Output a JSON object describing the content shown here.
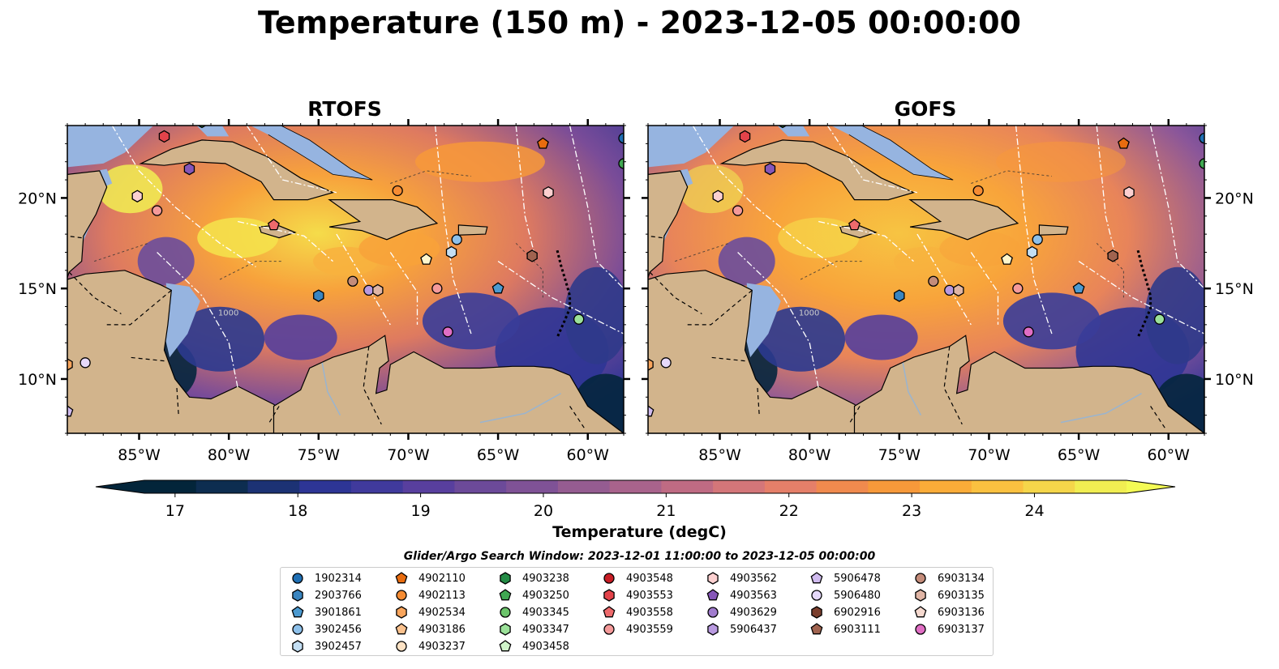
{
  "title": "Temperature (150 m) - 2023-12-05 00:00:00",
  "panels": [
    {
      "title": "RTOFS",
      "variant": "rtofs"
    },
    {
      "title": "GOFS",
      "variant": "gofs"
    }
  ],
  "map": {
    "lon_range": [
      -89,
      -58
    ],
    "lat_range": [
      7,
      24
    ],
    "lon_ticks": [
      -85,
      -80,
      -75,
      -70,
      -65,
      -60
    ],
    "lon_tick_labels": [
      "85°W",
      "80°W",
      "75°W",
      "70°W",
      "65°W",
      "60°W"
    ],
    "lat_ticks": [
      10,
      15,
      20
    ],
    "lat_tick_labels": [
      "10°N",
      "15°N",
      "20°N"
    ],
    "land_color": "#d2b48c",
    "shallow_color": "#96b4e0",
    "contour_label": "1000"
  },
  "colorbar": {
    "label": "Temperature (degC)",
    "range": [
      16.75,
      24.75
    ],
    "ticks": [
      17,
      18,
      19,
      20,
      21,
      22,
      23,
      24
    ],
    "tick_labels": [
      "17",
      "18",
      "19",
      "20",
      "21",
      "22",
      "23",
      "24"
    ],
    "colors": [
      "#03253a",
      "#0d2d50",
      "#1c3274",
      "#2d3595",
      "#403a9c",
      "#583f9e",
      "#6c4a99",
      "#7f5296",
      "#955c91",
      "#a9638c",
      "#bf6b83",
      "#d47679",
      "#e57f69",
      "#f08a4e",
      "#f7993a",
      "#fbac38",
      "#fbc140",
      "#f5d64a",
      "#f1ee52"
    ],
    "over_color": "#f4fb55",
    "under_color": "#03253a"
  },
  "legend": {
    "title": "Glider/Argo Search Window: 2023-12-01 11:00:00 to 2023-12-05 00:00:00",
    "columns": [
      [
        {
          "id": "1902314",
          "marker": "circle",
          "color": "#1f6fb4"
        },
        {
          "id": "2903766",
          "marker": "hexagon",
          "color": "#3a85c0"
        },
        {
          "id": "3901861",
          "marker": "pentagon",
          "color": "#4c9ad0"
        },
        {
          "id": "3902456",
          "marker": "circle",
          "color": "#8dc0ea"
        },
        {
          "id": "3902457",
          "marker": "hexagon",
          "color": "#c4dff4"
        }
      ],
      [
        {
          "id": "4902110",
          "marker": "pentagon",
          "color": "#e86c0f"
        },
        {
          "id": "4902113",
          "marker": "circle",
          "color": "#f68c33"
        },
        {
          "id": "4902534",
          "marker": "hexagon",
          "color": "#f9a55c"
        },
        {
          "id": "4903186",
          "marker": "pentagon",
          "color": "#fbc28e"
        },
        {
          "id": "4903237",
          "marker": "circle",
          "color": "#fde2c4"
        }
      ],
      [
        {
          "id": "4903238",
          "marker": "hexagon",
          "color": "#238b45"
        },
        {
          "id": "4903250",
          "marker": "pentagon",
          "color": "#40a852"
        },
        {
          "id": "4903345",
          "marker": "circle",
          "color": "#6cc46b"
        },
        {
          "id": "4903347",
          "marker": "hexagon",
          "color": "#9be199"
        },
        {
          "id": "4903458",
          "marker": "pentagon",
          "color": "#d0f4ca"
        }
      ],
      [
        {
          "id": "4903548",
          "marker": "circle",
          "color": "#c81d25"
        },
        {
          "id": "4903553",
          "marker": "hexagon",
          "color": "#e3434a"
        },
        {
          "id": "4903558",
          "marker": "pentagon",
          "color": "#ee6a6c"
        },
        {
          "id": "4903559",
          "marker": "circle",
          "color": "#f59a9a"
        }
      ],
      [
        {
          "id": "4903562",
          "marker": "hexagon",
          "color": "#fcd0d0"
        },
        {
          "id": "4903563",
          "marker": "pentagon",
          "color": "#8656b8"
        },
        {
          "id": "4903629",
          "marker": "circle",
          "color": "#a17cce"
        },
        {
          "id": "5906437",
          "marker": "hexagon",
          "color": "#b99ae0"
        }
      ],
      [
        {
          "id": "5906478",
          "marker": "pentagon",
          "color": "#d0bbef"
        },
        {
          "id": "5906480",
          "marker": "circle",
          "color": "#e6d9fa"
        },
        {
          "id": "6902916",
          "marker": "hexagon",
          "color": "#7b3f2e"
        },
        {
          "id": "6903111",
          "marker": "pentagon",
          "color": "#a0634f"
        }
      ],
      [
        {
          "id": "6903134",
          "marker": "circle",
          "color": "#c48c7a"
        },
        {
          "id": "6903135",
          "marker": "hexagon",
          "color": "#e0b5a5"
        },
        {
          "id": "6903136",
          "marker": "pentagon",
          "color": "#f5d9cf"
        },
        {
          "id": "6903137",
          "marker": "circle",
          "color": "#e06ec4"
        }
      ]
    ]
  },
  "markers": [
    {
      "lon": -83.6,
      "lat": 23.4,
      "marker": "hexagon",
      "color": "#e3434a"
    },
    {
      "lon": -81.5,
      "lat": 24.2,
      "marker": "hexagon",
      "color": "#238b45"
    },
    {
      "lon": -82.2,
      "lat": 21.6,
      "marker": "hexagon",
      "color": "#8656b8"
    },
    {
      "lon": -85.1,
      "lat": 20.1,
      "marker": "hexagon",
      "color": "#fcd0d0"
    },
    {
      "lon": -84.0,
      "lat": 19.3,
      "marker": "circle",
      "color": "#f59a9a"
    },
    {
      "lon": -77.5,
      "lat": 18.5,
      "marker": "pentagon",
      "color": "#ee6a6c"
    },
    {
      "lon": -70.6,
      "lat": 20.4,
      "marker": "circle",
      "color": "#f68c33"
    },
    {
      "lon": -62.5,
      "lat": 23.0,
      "marker": "pentagon",
      "color": "#e86c0f"
    },
    {
      "lon": -62.2,
      "lat": 20.3,
      "marker": "hexagon",
      "color": "#fcd0d0"
    },
    {
      "lon": -58.0,
      "lat": 23.3,
      "marker": "circle",
      "color": "#1f6fb4"
    },
    {
      "lon": -58.0,
      "lat": 21.9,
      "marker": "circle",
      "color": "#40a852"
    },
    {
      "lon": -67.3,
      "lat": 17.7,
      "marker": "circle",
      "color": "#8dc0ea"
    },
    {
      "lon": -67.6,
      "lat": 17.0,
      "marker": "hexagon",
      "color": "#c4dff4"
    },
    {
      "lon": -69.0,
      "lat": 16.6,
      "marker": "pentagon",
      "color": "#fff6cc"
    },
    {
      "lon": -63.1,
      "lat": 16.8,
      "marker": "hexagon",
      "color": "#a0634f"
    },
    {
      "lon": -73.1,
      "lat": 15.4,
      "marker": "circle",
      "color": "#c48c7a"
    },
    {
      "lon": -72.2,
      "lat": 14.9,
      "marker": "circle",
      "color": "#b99ae0"
    },
    {
      "lon": -71.7,
      "lat": 14.9,
      "marker": "hexagon",
      "color": "#e0b5a5"
    },
    {
      "lon": -68.4,
      "lat": 15.0,
      "marker": "circle",
      "color": "#f59a9a"
    },
    {
      "lon": -65.0,
      "lat": 15.0,
      "marker": "pentagon",
      "color": "#4c9ad0"
    },
    {
      "lon": -75.0,
      "lat": 14.6,
      "marker": "hexagon",
      "color": "#3a85c0"
    },
    {
      "lon": -67.8,
      "lat": 12.6,
      "marker": "circle",
      "color": "#e06ec4"
    },
    {
      "lon": -60.5,
      "lat": 13.3,
      "marker": "circle",
      "color": "#9be199"
    },
    {
      "lon": -88.0,
      "lat": 10.9,
      "marker": "circle",
      "color": "#e6d9fa"
    },
    {
      "lon": -89.0,
      "lat": 10.8,
      "marker": "hexagon",
      "color": "#f9a55c"
    },
    {
      "lon": -89.0,
      "lat": 8.2,
      "marker": "pentagon",
      "color": "#d0bbef"
    }
  ]
}
